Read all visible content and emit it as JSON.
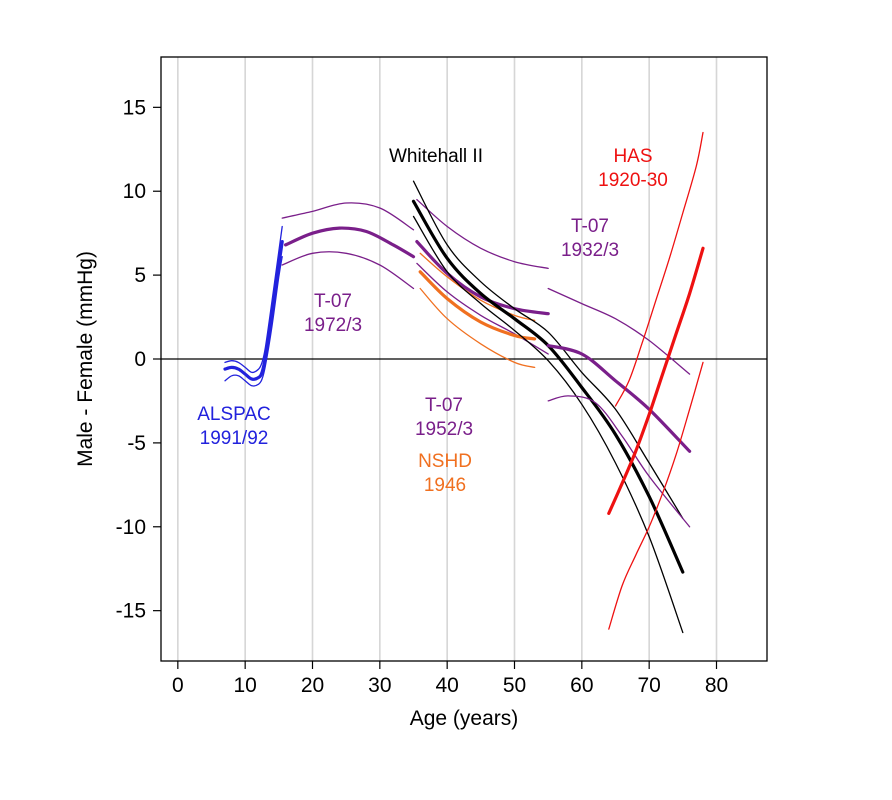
{
  "chart_data": {
    "type": "line",
    "title": "",
    "xlabel": "Age (years)",
    "ylabel": "Male - Female (mmHg)",
    "xlim": [
      -2.5,
      87.5
    ],
    "ylim": [
      -18,
      18
    ],
    "xticks": [
      "0",
      "10",
      "20",
      "30",
      "40",
      "50",
      "60",
      "70",
      "80"
    ],
    "yticks": [
      "15",
      "10",
      "5",
      "0",
      "-5",
      "-10",
      "-15"
    ],
    "grid": "vertical",
    "reference_line_y": 0,
    "colors": {
      "ALSPAC": "#2222dd",
      "T07": "#7a1f8a",
      "NSHD": "#f07020",
      "Whitehall": "#000000",
      "HAS": "#ee1111"
    },
    "annotations": [
      {
        "key": "alspac",
        "lines": [
          "ALSPAC",
          "1991/92"
        ],
        "color": "#2222dd"
      },
      {
        "key": "t07_1972",
        "lines": [
          "T-07",
          "1972/3"
        ],
        "color": "#7a1f8a"
      },
      {
        "key": "t07_1952",
        "lines": [
          "T-07",
          "1952/3"
        ],
        "color": "#7a1f8a"
      },
      {
        "key": "nshd",
        "lines": [
          "NSHD",
          "1946"
        ],
        "color": "#f07020"
      },
      {
        "key": "whitehall",
        "lines": [
          "Whitehall II"
        ],
        "color": "#000000"
      },
      {
        "key": "has",
        "lines": [
          "HAS",
          "1920-30"
        ],
        "color": "#ee1111"
      },
      {
        "key": "t07_1932",
        "lines": [
          "T-07",
          "1932/3"
        ],
        "color": "#7a1f8a"
      }
    ],
    "series": [
      {
        "cohort": "ALSPAC",
        "band": "estimate",
        "x": [
          7,
          8,
          9,
          10,
          11,
          12,
          12.5,
          13,
          14,
          15,
          15.5
        ],
        "y": [
          -0.6,
          -0.5,
          -0.6,
          -0.9,
          -1.2,
          -1.1,
          -0.8,
          0.1,
          2.8,
          5.6,
          7.0
        ]
      },
      {
        "cohort": "ALSPAC",
        "band": "upper",
        "x": [
          7,
          8,
          9,
          10,
          11,
          12,
          12.5,
          13,
          14,
          15,
          15.5
        ],
        "y": [
          -0.2,
          -0.1,
          -0.2,
          -0.5,
          -0.8,
          -0.6,
          -0.2,
          0.7,
          3.5,
          6.4,
          7.9
        ]
      },
      {
        "cohort": "ALSPAC",
        "band": "lower",
        "x": [
          7,
          8,
          9,
          10,
          11,
          12,
          12.5,
          13,
          14,
          15,
          15.5
        ],
        "y": [
          -1.3,
          -1.0,
          -1.0,
          -1.3,
          -1.6,
          -1.5,
          -1.2,
          -0.4,
          2.0,
          4.9,
          6.1
        ]
      },
      {
        "cohort": "T07",
        "band": "estimate",
        "x": [
          16,
          20,
          24,
          28,
          32,
          35
        ],
        "y": [
          6.8,
          7.5,
          7.8,
          7.6,
          6.8,
          6.1
        ]
      },
      {
        "cohort": "T07",
        "band": "upper",
        "x": [
          15.5,
          20,
          25,
          30,
          35
        ],
        "y": [
          8.4,
          8.8,
          9.3,
          9.0,
          7.7
        ]
      },
      {
        "cohort": "T07",
        "band": "lower",
        "x": [
          15.5,
          20,
          25,
          30,
          35
        ],
        "y": [
          5.6,
          6.3,
          6.3,
          5.6,
          4.2
        ]
      },
      {
        "cohort": "T07",
        "band": "estimate",
        "x": [
          35.5,
          40,
          45,
          50,
          55
        ],
        "y": [
          7.0,
          5.1,
          3.7,
          3.0,
          2.7
        ]
      },
      {
        "cohort": "T07",
        "band": "upper",
        "x": [
          35.5,
          40,
          45,
          50,
          55
        ],
        "y": [
          9.5,
          7.9,
          6.6,
          5.8,
          5.4
        ]
      },
      {
        "cohort": "T07",
        "band": "lower",
        "x": [
          35.5,
          40,
          45,
          50,
          55
        ],
        "y": [
          5.7,
          4.0,
          2.6,
          1.5,
          0.3
        ]
      },
      {
        "cohort": "NSHD",
        "band": "estimate",
        "x": [
          36,
          40,
          45,
          50,
          53
        ],
        "y": [
          5.2,
          3.6,
          2.2,
          1.4,
          1.2
        ]
      },
      {
        "cohort": "NSHD",
        "band": "upper",
        "x": [
          36,
          40,
          45,
          50,
          53
        ],
        "y": [
          6.3,
          4.9,
          3.5,
          2.6,
          2.3
        ]
      },
      {
        "cohort": "NSHD",
        "band": "lower",
        "x": [
          36,
          40,
          45,
          50,
          53
        ],
        "y": [
          4.2,
          2.4,
          0.9,
          -0.2,
          -0.5
        ]
      },
      {
        "cohort": "Whitehall",
        "band": "estimate",
        "x": [
          35,
          40,
          45,
          50,
          55,
          60,
          65,
          70,
          75
        ],
        "y": [
          9.4,
          6.0,
          3.9,
          2.4,
          0.8,
          -1.7,
          -4.5,
          -8.2,
          -12.7
        ]
      },
      {
        "cohort": "Whitehall",
        "band": "upper",
        "x": [
          35,
          40,
          45,
          50,
          55,
          60,
          65,
          70,
          75
        ],
        "y": [
          10.6,
          6.8,
          4.6,
          3.0,
          1.6,
          -0.8,
          -3.0,
          -6.2,
          -9.5
        ]
      },
      {
        "cohort": "Whitehall",
        "band": "lower",
        "x": [
          35,
          40,
          45,
          50,
          55,
          60,
          65,
          70,
          75
        ],
        "y": [
          8.5,
          5.2,
          3.3,
          1.7,
          -0.1,
          -2.7,
          -6.2,
          -10.6,
          -16.3
        ]
      },
      {
        "cohort": "T07",
        "band": "estimate",
        "x": [
          55,
          60,
          65,
          70,
          76
        ],
        "y": [
          0.8,
          0.3,
          -1.3,
          -3.0,
          -5.5
        ]
      },
      {
        "cohort": "T07",
        "band": "upper",
        "x": [
          55,
          60,
          65,
          70,
          76
        ],
        "y": [
          4.2,
          3.3,
          2.4,
          1.1,
          -0.9
        ]
      },
      {
        "cohort": "T07",
        "band": "lower",
        "x": [
          55,
          58,
          62,
          66,
          70,
          76
        ],
        "y": [
          -2.5,
          -2.2,
          -2.6,
          -4.6,
          -7.0,
          -10.0
        ]
      },
      {
        "cohort": "HAS",
        "band": "estimate",
        "x": [
          64,
          66,
          68,
          70,
          72,
          74,
          76,
          78
        ],
        "y": [
          -9.2,
          -7.4,
          -5.5,
          -3.3,
          -0.9,
          1.5,
          3.9,
          6.6
        ]
      },
      {
        "cohort": "HAS",
        "band": "upper",
        "x": [
          65,
          67,
          69,
          71,
          73,
          75,
          77,
          78
        ],
        "y": [
          -2.8,
          -1.3,
          1.0,
          3.5,
          6.0,
          8.7,
          11.5,
          13.5
        ]
      },
      {
        "cohort": "HAS",
        "band": "lower",
        "x": [
          64,
          66,
          68,
          70,
          72,
          74,
          76,
          78
        ],
        "y": [
          -16.1,
          -13.5,
          -11.7,
          -10.0,
          -8.0,
          -5.7,
          -3.0,
          -0.2
        ]
      }
    ]
  }
}
